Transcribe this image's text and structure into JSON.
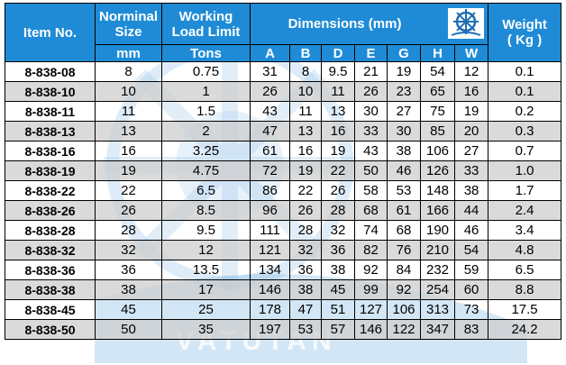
{
  "header": {
    "item_no": "Item No.",
    "nominal_size_1": "Norminal",
    "nominal_size_2": "Size",
    "working_load_1": "Working",
    "working_load_2": "Load Limit",
    "dimensions": "Dimensions (mm)",
    "weight_1": "Weight",
    "weight_2": "( Kg )",
    "unit_size": "mm",
    "unit_load": "Tons",
    "dims": [
      "A",
      "B",
      "D",
      "E",
      "G",
      "H",
      "W"
    ]
  },
  "watermark_text": "VATUTAN",
  "colors": {
    "header_bg": "#1f8bd6",
    "header_text": "#ffffff",
    "shade": "#cdcdcd"
  },
  "rows": [
    {
      "item": "8-838-08",
      "size": "8",
      "load": "0.75",
      "A": "31",
      "B": "8",
      "D": "9.5",
      "E": "21",
      "G": "19",
      "H": "54",
      "W": "12",
      "weight": "0.1"
    },
    {
      "item": "8-838-10",
      "size": "10",
      "load": "1",
      "A": "26",
      "B": "10",
      "D": "11",
      "E": "26",
      "G": "23",
      "H": "65",
      "W": "16",
      "weight": "0.1"
    },
    {
      "item": "8-838-11",
      "size": "11",
      "load": "1.5",
      "A": "43",
      "B": "11",
      "D": "13",
      "E": "30",
      "G": "27",
      "H": "75",
      "W": "19",
      "weight": "0.2"
    },
    {
      "item": "8-838-13",
      "size": "13",
      "load": "2",
      "A": "47",
      "B": "13",
      "D": "16",
      "E": "33",
      "G": "30",
      "H": "85",
      "W": "20",
      "weight": "0.3"
    },
    {
      "item": "8-838-16",
      "size": "16",
      "load": "3.25",
      "A": "61",
      "B": "16",
      "D": "19",
      "E": "43",
      "G": "38",
      "H": "106",
      "W": "27",
      "weight": "0.7"
    },
    {
      "item": "8-838-19",
      "size": "19",
      "load": "4.75",
      "A": "72",
      "B": "19",
      "D": "22",
      "E": "50",
      "G": "46",
      "H": "126",
      "W": "33",
      "weight": "1.0"
    },
    {
      "item": "8-838-22",
      "size": "22",
      "load": "6.5",
      "A": "86",
      "B": "22",
      "D": "26",
      "E": "58",
      "G": "53",
      "H": "148",
      "W": "38",
      "weight": "1.7"
    },
    {
      "item": "8-838-26",
      "size": "26",
      "load": "8.5",
      "A": "96",
      "B": "26",
      "D": "28",
      "E": "68",
      "G": "61",
      "H": "166",
      "W": "44",
      "weight": "2.4"
    },
    {
      "item": "8-838-28",
      "size": "28",
      "load": "9.5",
      "A": "111",
      "B": "28",
      "D": "32",
      "E": "74",
      "G": "68",
      "H": "190",
      "W": "46",
      "weight": "3.4"
    },
    {
      "item": "8-838-32",
      "size": "32",
      "load": "12",
      "A": "121",
      "B": "32",
      "D": "36",
      "E": "82",
      "G": "76",
      "H": "210",
      "W": "54",
      "weight": "4.8"
    },
    {
      "item": "8-838-36",
      "size": "36",
      "load": "13.5",
      "A": "134",
      "B": "36",
      "D": "38",
      "E": "92",
      "G": "84",
      "H": "232",
      "W": "59",
      "weight": "6.5"
    },
    {
      "item": "8-838-38",
      "size": "38",
      "load": "17",
      "A": "146",
      "B": "38",
      "D": "45",
      "E": "99",
      "G": "92",
      "H": "254",
      "W": "60",
      "weight": "8.8"
    },
    {
      "item": "8-838-45",
      "size": "45",
      "load": "25",
      "A": "178",
      "B": "47",
      "D": "51",
      "E": "127",
      "G": "106",
      "H": "313",
      "W": "73",
      "weight": "17.5"
    },
    {
      "item": "8-838-50",
      "size": "50",
      "load": "35",
      "A": "197",
      "B": "53",
      "D": "57",
      "E": "146",
      "G": "122",
      "H": "347",
      "W": "83",
      "weight": "24.2"
    }
  ]
}
